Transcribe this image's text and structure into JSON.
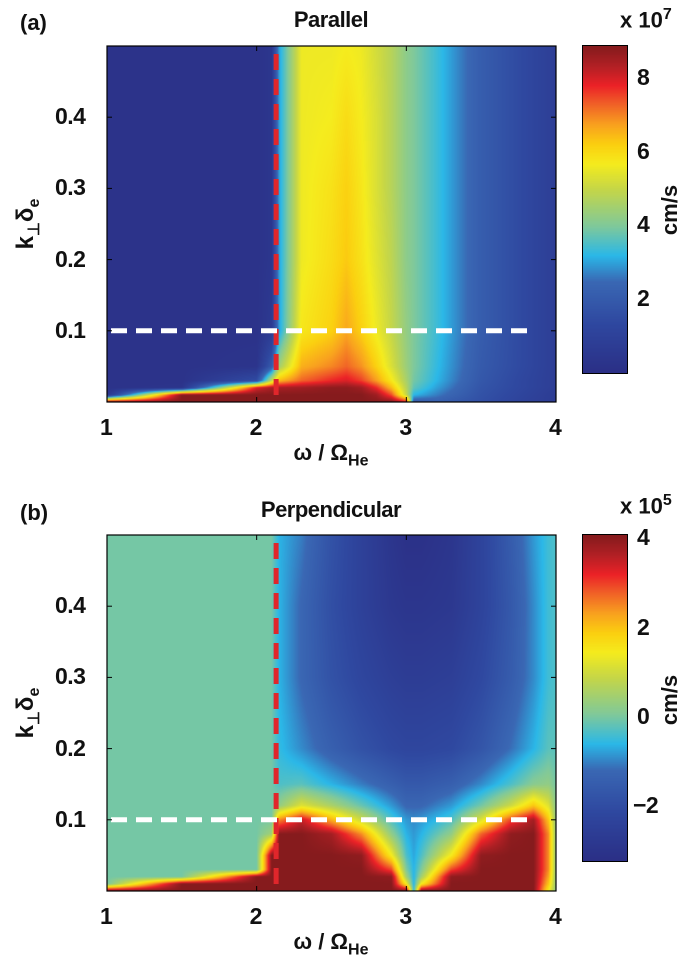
{
  "chart_data": [
    {
      "type": "heatmap",
      "panel_label": "(a)",
      "title": "Parallel",
      "xlabel": {
        "main": "ω / Ω",
        "sub": "He"
      },
      "ylabel": {
        "main": "k",
        "sub1": "⊥",
        "mid": "δ",
        "sub2": "e"
      },
      "xlim": [
        1,
        4
      ],
      "ylim": [
        0,
        0.5
      ],
      "xticks": [
        "1",
        "2",
        "3",
        "4"
      ],
      "yticks": [
        "0.1",
        "0.2",
        "0.3",
        "0.4"
      ],
      "colorbar": {
        "label": "cm/s",
        "exponent_base": "x 10",
        "exponent": "7",
        "range": [
          0,
          8.9
        ],
        "ticks": [
          "2",
          "4",
          "6",
          "8"
        ]
      },
      "reference_lines": [
        {
          "orientation": "vertical",
          "x": 2.13,
          "color": "#e0262b"
        },
        {
          "orientation": "horizontal",
          "y": 0.1,
          "color": "#ffffff"
        }
      ],
      "grid_x": [
        1.0,
        1.5,
        2.0,
        2.1,
        2.15,
        2.3,
        2.5,
        2.6,
        2.7,
        2.8,
        2.9,
        3.0,
        3.05,
        3.2,
        3.5,
        3.8,
        4.0
      ],
      "grid_y": [
        0,
        0.01,
        0.02,
        0.03,
        0.05,
        0.1,
        0.2,
        0.3,
        0.4,
        0.5
      ],
      "z": [
        [
          8.9,
          0.3,
          0.2,
          0.2,
          0.2,
          0.2,
          0.2,
          0.2,
          0.2,
          0.2
        ],
        [
          8.9,
          8.9,
          0.3,
          0.2,
          0.2,
          0.2,
          0.2,
          0.2,
          0.2,
          0.2
        ],
        [
          8.9,
          8.9,
          8.0,
          1.5,
          0.3,
          0.2,
          0.2,
          0.2,
          0.2,
          0.2
        ],
        [
          8.9,
          8.9,
          8.5,
          5.0,
          2.0,
          0.6,
          0.4,
          0.4,
          0.4,
          0.4
        ],
        [
          8.9,
          8.9,
          8.5,
          6.5,
          4.5,
          3.0,
          3.0,
          3.0,
          3.0,
          3.0
        ],
        [
          8.9,
          8.9,
          8.6,
          7.3,
          6.6,
          5.8,
          5.6,
          5.6,
          5.6,
          5.6
        ],
        [
          8.9,
          8.9,
          8.8,
          7.8,
          7.0,
          6.2,
          6.0,
          5.9,
          5.7,
          5.6
        ],
        [
          8.9,
          8.9,
          8.8,
          8.0,
          7.3,
          6.7,
          6.3,
          6.2,
          6.0,
          5.7
        ],
        [
          8.9,
          8.9,
          8.6,
          7.6,
          6.9,
          6.2,
          5.9,
          5.8,
          5.7,
          5.6
        ],
        [
          8.9,
          8.6,
          7.8,
          6.8,
          6.2,
          5.6,
          5.4,
          5.3,
          5.3,
          5.2
        ],
        [
          8.9,
          7.5,
          6.5,
          5.8,
          5.3,
          5.0,
          4.9,
          4.8,
          4.8,
          4.8
        ],
        [
          8.0,
          5.0,
          4.8,
          4.6,
          4.4,
          4.3,
          4.2,
          4.2,
          4.2,
          4.2
        ],
        [
          2.0,
          3.2,
          3.7,
          3.9,
          4.0,
          4.0,
          4.0,
          4.0,
          4.0,
          4.0
        ],
        [
          2.2,
          2.7,
          3.0,
          3.2,
          3.3,
          3.4,
          3.4,
          3.4,
          3.4,
          3.4
        ],
        [
          1.6,
          1.7,
          1.8,
          1.9,
          2.0,
          2.1,
          2.1,
          2.1,
          2.1,
          2.1
        ],
        [
          1.0,
          1.1,
          1.2,
          1.2,
          1.3,
          1.3,
          1.3,
          1.3,
          1.3,
          1.3
        ],
        [
          0.7,
          0.7,
          0.8,
          0.8,
          0.8,
          0.8,
          0.8,
          0.8,
          0.8,
          0.8
        ]
      ]
    },
    {
      "type": "heatmap",
      "panel_label": "(b)",
      "title": "Perpendicular",
      "xlabel": {
        "main": "ω / Ω",
        "sub": "He"
      },
      "ylabel": {
        "main": "k",
        "sub1": "⊥",
        "mid": "δ",
        "sub2": "e"
      },
      "xlim": [
        1,
        4
      ],
      "ylim": [
        0,
        0.5
      ],
      "xticks": [
        "1",
        "2",
        "3",
        "4"
      ],
      "yticks": [
        "0.1",
        "0.2",
        "0.3",
        "0.4"
      ],
      "colorbar": {
        "label": "cm/s",
        "exponent_base": "x 10",
        "exponent": "5",
        "range": [
          -3.2,
          4.1
        ],
        "ticks": [
          "−2",
          "0",
          "2",
          "4"
        ]
      },
      "reference_lines": [
        {
          "orientation": "vertical",
          "x": 2.13,
          "color": "#e0262b"
        },
        {
          "orientation": "horizontal",
          "y": 0.1,
          "color": "#ffffff"
        }
      ],
      "grid_x": [
        1.0,
        1.5,
        2.0,
        2.1,
        2.15,
        2.3,
        2.5,
        2.7,
        2.9,
        3.0,
        3.05,
        3.1,
        3.3,
        3.5,
        3.7,
        3.85,
        3.95,
        4.0
      ],
      "grid_y": [
        0,
        0.01,
        0.02,
        0.03,
        0.05,
        0.08,
        0.1,
        0.12,
        0.15,
        0.2,
        0.3,
        0.4,
        0.5
      ],
      "z": [
        [
          4.1,
          0,
          0,
          0,
          0,
          0,
          0,
          0,
          0,
          0,
          0,
          0,
          0
        ],
        [
          4.1,
          4.1,
          0,
          0,
          0,
          0,
          0,
          0,
          0,
          0,
          0,
          0,
          0
        ],
        [
          4.1,
          4.1,
          4.1,
          0,
          0,
          0,
          0,
          0,
          0,
          0,
          0,
          0,
          0
        ],
        [
          4.1,
          4.1,
          4.1,
          4.1,
          4.1,
          0.5,
          0,
          0,
          0,
          0,
          0,
          0,
          0
        ],
        [
          4.1,
          4.1,
          4.1,
          4.1,
          4.1,
          4.1,
          2.5,
          0.3,
          -0.3,
          -0.5,
          -0.6,
          -0.6,
          -0.6
        ],
        [
          4.1,
          4.1,
          4.1,
          4.1,
          4.1,
          4.1,
          3.5,
          1.2,
          -0.2,
          -0.9,
          -1.2,
          -1.2,
          -1.0
        ],
        [
          4.1,
          4.1,
          4.1,
          4.1,
          4.1,
          3.8,
          2.2,
          0.6,
          -0.6,
          -1.4,
          -1.8,
          -1.9,
          -1.8
        ],
        [
          4.1,
          4.1,
          4.1,
          4.1,
          4.0,
          2.5,
          1.0,
          -0.1,
          -1.0,
          -1.8,
          -2.2,
          -2.4,
          -2.4
        ],
        [
          4.1,
          4.1,
          4.0,
          3.0,
          1.5,
          0.3,
          -0.3,
          -0.8,
          -1.4,
          -2.1,
          -2.5,
          -2.8,
          -2.9
        ],
        [
          4.1,
          1.5,
          0.5,
          0.1,
          -0.3,
          -0.6,
          -0.8,
          -1.2,
          -1.6,
          -2.2,
          -2.6,
          -2.9,
          -3.1
        ],
        [
          -0.5,
          -0.6,
          -0.6,
          -0.6,
          -0.7,
          -0.8,
          -0.9,
          -1.2,
          -1.6,
          -2.2,
          -2.6,
          -2.9,
          -3.1
        ],
        [
          4.1,
          1.5,
          0.5,
          0.1,
          -0.3,
          -0.6,
          -0.8,
          -1.2,
          -1.6,
          -2.2,
          -2.6,
          -2.9,
          -3.1
        ],
        [
          4.1,
          4.1,
          4.0,
          3.0,
          1.5,
          0.3,
          -0.3,
          -0.8,
          -1.4,
          -2.1,
          -2.5,
          -2.8,
          -2.9
        ],
        [
          4.1,
          4.1,
          4.1,
          4.1,
          4.0,
          2.8,
          1.2,
          0,
          -0.9,
          -1.7,
          -2.1,
          -2.3,
          -2.3
        ],
        [
          4.1,
          4.1,
          4.1,
          4.1,
          4.1,
          4.0,
          3.0,
          1.0,
          -0.3,
          -1.1,
          -1.5,
          -1.6,
          -1.5
        ],
        [
          4.1,
          4.1,
          4.1,
          4.1,
          4.1,
          4.1,
          3.8,
          2.0,
          0.2,
          -0.6,
          -0.9,
          -0.9,
          -0.8
        ],
        [
          1.5,
          2.0,
          2.3,
          2.5,
          2.5,
          2.5,
          2.0,
          1.2,
          0.3,
          -0.2,
          -0.4,
          -0.4,
          -0.4
        ],
        [
          0.3,
          0.3,
          0.3,
          0.3,
          0.3,
          0.3,
          0.3,
          0.2,
          0,
          -0.2,
          -0.3,
          -0.3,
          -0.3
        ]
      ]
    }
  ],
  "colormap": [
    "#2b2f86",
    "#2f48a0",
    "#3a68b4",
    "#2bb8e8",
    "#80c99b",
    "#c4d64a",
    "#f5ec1e",
    "#fbd010",
    "#f9a21f",
    "#f05a28",
    "#ec2227",
    "#b22025",
    "#861b1d"
  ]
}
